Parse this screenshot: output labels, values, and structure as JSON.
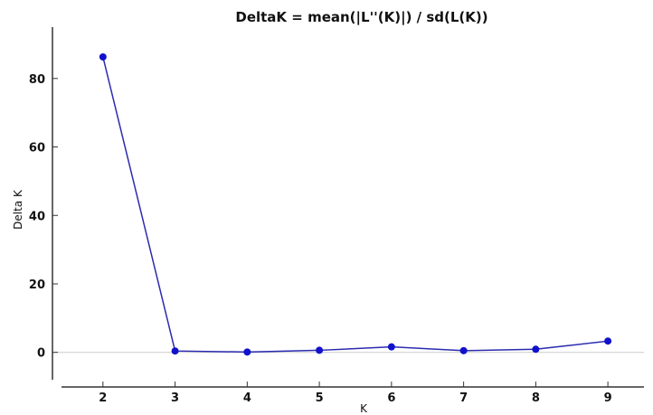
{
  "chart_data": {
    "type": "line",
    "title": "DeltaK = mean(|L''(K)|) / sd(L(K))",
    "xlabel": "K",
    "ylabel": "Delta K",
    "x": [
      2,
      3,
      4,
      5,
      6,
      7,
      8,
      9
    ],
    "xlim": [
      1.3,
      9.5
    ],
    "ylim": [
      -8,
      95
    ],
    "xticks": [
      "2",
      "3",
      "4",
      "5",
      "6",
      "7",
      "8",
      "9"
    ],
    "yticks": [
      "0",
      "20",
      "40",
      "60",
      "80"
    ],
    "series": [
      {
        "values": [
          86.3,
          0.4,
          0.1,
          0.6,
          1.6,
          0.5,
          0.9,
          3.3
        ],
        "color": "#2b2bb0"
      }
    ],
    "grid": false,
    "zero_line": true
  }
}
